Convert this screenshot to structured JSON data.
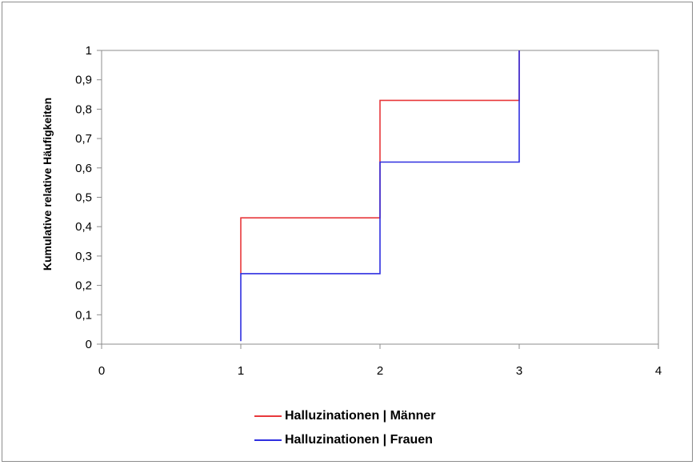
{
  "chart_data": {
    "type": "line",
    "title": "",
    "xlabel": "",
    "ylabel": "Kumulative relative Häufigkeiten",
    "xlim": [
      0,
      4
    ],
    "ylim": [
      0,
      1
    ],
    "x_ticks": [
      "0",
      "1",
      "2",
      "3",
      "4"
    ],
    "y_ticks": [
      "0",
      "0,1",
      "0,2",
      "0,3",
      "0,4",
      "0,5",
      "0,6",
      "0,7",
      "0,8",
      "0,9",
      "1"
    ],
    "grid": false,
    "legend_position": "bottom",
    "series": [
      {
        "name": "Halluzinationen | Männer",
        "color": "#e8383b",
        "x": [
          1,
          1,
          2,
          2,
          3,
          3
        ],
        "y": [
          0.24,
          0.43,
          0.43,
          0.83,
          0.83,
          1
        ]
      },
      {
        "name": "Halluzinationen | Frauen",
        "color": "#2f2fe0",
        "x": [
          1,
          1,
          2,
          2,
          3,
          3
        ],
        "y": [
          0.01,
          0.24,
          0.24,
          0.62,
          0.62,
          1
        ]
      }
    ]
  }
}
